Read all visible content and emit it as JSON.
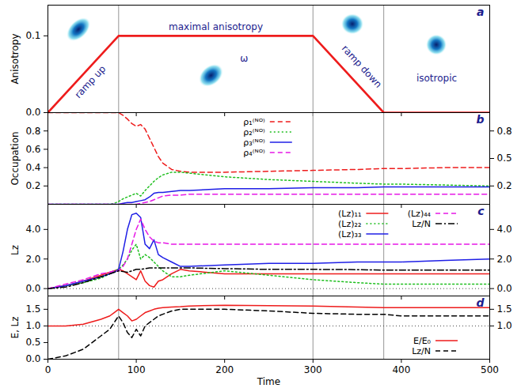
{
  "chart_data": [
    {
      "type": "line",
      "title": "a",
      "ylabel": "Anisotropy",
      "xlim": [
        0,
        500
      ],
      "xticks": [
        0,
        100,
        200,
        300,
        400,
        500
      ],
      "ylim": [
        0,
        0.14
      ],
      "yticks": [
        {
          "value": 0,
          "label": "0.0"
        },
        0.1
      ],
      "tick_labels": "y",
      "x": [
        0,
        80,
        300,
        380,
        500
      ],
      "series": [
        {
          "color": "#ee1c1c",
          "line_style": "solid",
          "values": [
            0,
            0.1,
            0.1,
            0,
            0
          ]
        }
      ],
      "reference_x": [
        80,
        300,
        380
      ],
      "annotations": [
        {
          "text": "ramp up",
          "x": 48,
          "y": 0.04
        },
        {
          "text": "maximal anisotropy",
          "x": 190,
          "y": 0.112
        },
        {
          "text": "ω",
          "x": 222,
          "y": 0.07
        },
        {
          "text": "ramp down",
          "x": 355,
          "y": 0.06
        },
        {
          "text": "isotropic",
          "x": 440,
          "y": 0.045
        }
      ]
    },
    {
      "type": "line",
      "title": "b",
      "ylabel": "Occupation",
      "xlim": [
        0,
        500
      ],
      "xticks": [
        0,
        100,
        200,
        300,
        400,
        500
      ],
      "ylim": [
        0,
        1
      ],
      "yticks": [
        0.2,
        0.4,
        0.6,
        0.8
      ],
      "y2lim": [
        0,
        1
      ],
      "y2ticks": [
        0.2,
        0.5,
        0.8
      ],
      "tick_labels": "y",
      "legend": "top",
      "x": [
        0,
        20,
        40,
        60,
        70,
        75,
        80,
        85,
        90,
        95,
        100,
        105,
        110,
        115,
        120,
        125,
        130,
        140,
        150,
        160,
        200,
        250,
        300,
        350,
        380,
        400,
        450,
        500
      ],
      "series": [
        {
          "name": "ρ₁⁽ᴺᴼ⁾",
          "color": "#ee1c1c",
          "line_style": "dashed",
          "values": [
            1,
            1,
            1,
            1,
            1,
            1,
            1,
            0.97,
            0.93,
            0.88,
            0.85,
            0.87,
            0.82,
            0.72,
            0.62,
            0.52,
            0.45,
            0.38,
            0.36,
            0.35,
            0.35,
            0.36,
            0.37,
            0.38,
            0.39,
            0.39,
            0.4,
            0.4
          ]
        },
        {
          "name": "ρ₂⁽ᴺᴼ⁾",
          "color": "#1fbf1f",
          "line_style": "dotted",
          "values": [
            0,
            0,
            0,
            0,
            0,
            0.01,
            0.03,
            0.06,
            0.08,
            0.1,
            0.12,
            0.09,
            0.15,
            0.2,
            0.25,
            0.29,
            0.32,
            0.35,
            0.35,
            0.34,
            0.3,
            0.27,
            0.25,
            0.23,
            0.22,
            0.22,
            0.21,
            0.2
          ]
        },
        {
          "name": "ρ₃⁽ᴺᴼ⁾",
          "color": "#1f1fe6",
          "line_style": "solid",
          "values": [
            0,
            0,
            0,
            0,
            0,
            0,
            0,
            0.01,
            0.02,
            0.02,
            0.03,
            0.04,
            0.05,
            0.08,
            0.12,
            0.13,
            0.13,
            0.14,
            0.15,
            0.15,
            0.17,
            0.17,
            0.18,
            0.18,
            0.19,
            0.19,
            0.19,
            0.19
          ]
        },
        {
          "name": "ρ₄⁽ᴺᴼ⁾",
          "color": "#e619e6",
          "line_style": "dashed",
          "values": [
            0,
            0,
            0,
            0,
            0,
            0,
            0,
            0,
            0,
            0,
            0,
            0.01,
            0.02,
            0.03,
            0.05,
            0.07,
            0.09,
            0.1,
            0.1,
            0.11,
            0.11,
            0.11,
            0.11,
            0.11,
            0.11,
            0.11,
            0.11,
            0.11
          ]
        }
      ],
      "reference_x": [
        80,
        300,
        380
      ]
    },
    {
      "type": "line",
      "title": "c",
      "ylabel": "Lz",
      "xlim": [
        0,
        500
      ],
      "xticks": [
        0,
        100,
        200,
        300,
        400,
        500
      ],
      "ylim": [
        -0.5,
        5.7
      ],
      "yticks": [
        {
          "value": 0,
          "label": "0.0"
        },
        {
          "value": 2,
          "label": "2.0"
        },
        {
          "value": 4,
          "label": "4.0"
        }
      ],
      "y2lim": [
        -0.5,
        5.7
      ],
      "y2ticks": [
        {
          "value": 0,
          "label": "0.0"
        },
        {
          "value": 2,
          "label": "2.0"
        },
        {
          "value": 4,
          "label": "4.0"
        }
      ],
      "tick_labels": "y",
      "legend": "top-right",
      "x": [
        0,
        20,
        40,
        60,
        70,
        75,
        80,
        85,
        90,
        95,
        100,
        105,
        110,
        115,
        120,
        125,
        130,
        140,
        150,
        160,
        200,
        250,
        300,
        350,
        380,
        400,
        450,
        500
      ],
      "series": [
        {
          "name": "(Lz)₁₁",
          "color": "#ee1c1c",
          "line_style": "solid",
          "values": [
            0,
            0.2,
            0.5,
            0.9,
            1.1,
            1.2,
            1.3,
            1.2,
            1.0,
            0.8,
            0.6,
            1.2,
            0.5,
            0.2,
            0.1,
            0.5,
            0.6,
            1.0,
            1.3,
            1.2,
            1.0,
            1.0,
            1.0,
            1.0,
            1.0,
            1.0,
            1.0,
            1.0
          ]
        },
        {
          "name": "(Lz)₂₂",
          "color": "#1fbf1f",
          "line_style": "dotted",
          "values": [
            0,
            0.2,
            0.4,
            0.7,
            1.0,
            1.2,
            1.3,
            1.6,
            2.0,
            2.6,
            3.0,
            2.0,
            2.3,
            2.1,
            1.8,
            1.5,
            1.2,
            0.8,
            0.8,
            0.9,
            1.2,
            0.9,
            0.6,
            0.4,
            0.3,
            0.3,
            0.3,
            0.3
          ]
        },
        {
          "name": "(Lz)₃₃",
          "color": "#1f1fe6",
          "line_style": "solid",
          "values": [
            0,
            0.2,
            0.5,
            0.8,
            1.0,
            1.1,
            1.3,
            2.5,
            4.0,
            5.0,
            5.1,
            4.8,
            3.0,
            2.7,
            3.3,
            2.3,
            2.1,
            1.8,
            1.5,
            1.5,
            1.6,
            1.7,
            1.7,
            1.8,
            1.8,
            1.8,
            1.9,
            2.0
          ]
        },
        {
          "name": "(Lz)₄₄",
          "color": "#e619e6",
          "line_style": "dashed",
          "values": [
            0,
            0.3,
            0.6,
            1.0,
            1.1,
            1.2,
            1.2,
            1.5,
            2.0,
            3.0,
            4.0,
            4.7,
            4.0,
            3.5,
            3.2,
            3.1,
            3.1,
            3.0,
            3.0,
            3.0,
            3.0,
            3.0,
            3.0,
            3.0,
            3.0,
            3.0,
            3.0,
            3.0
          ]
        },
        {
          "name": "Lz/N",
          "color": "#000000",
          "line_style": "dashdot",
          "values": [
            0,
            0.1,
            0.4,
            0.8,
            1.0,
            1.1,
            1.2,
            1.15,
            1.1,
            1.2,
            1.3,
            1.3,
            1.35,
            1.4,
            1.4,
            1.4,
            1.4,
            1.4,
            1.4,
            1.4,
            1.35,
            1.3,
            1.3,
            1.28,
            1.25,
            1.25,
            1.25,
            1.25
          ]
        }
      ],
      "reference_x": [
        80,
        300,
        380
      ],
      "reference_lines": [
        0
      ]
    },
    {
      "type": "line",
      "title": "d",
      "ylabel": "E, Lz",
      "xlabel": "Time",
      "xlim": [
        0,
        500
      ],
      "xticks": [
        0,
        100,
        200,
        300,
        400,
        500
      ],
      "ylim": [
        0,
        1.9
      ],
      "yticks": [
        {
          "value": 0,
          "label": "0.0"
        },
        0.5,
        {
          "value": 1,
          "label": "1.0"
        },
        1.5
      ],
      "y2lim": [
        0,
        1.9
      ],
      "y2ticks": [
        {
          "value": 1,
          "label": "1.0"
        },
        1.5
      ],
      "legend": "bottom-right",
      "x": [
        0,
        20,
        40,
        60,
        70,
        75,
        80,
        85,
        90,
        95,
        100,
        105,
        110,
        115,
        120,
        125,
        130,
        140,
        150,
        160,
        200,
        250,
        300,
        350,
        380,
        400,
        450,
        500
      ],
      "series": [
        {
          "name": "E/E₀",
          "color": "#ee1c1c",
          "line_style": "solid",
          "values": [
            1.0,
            1.0,
            1.05,
            1.2,
            1.3,
            1.4,
            1.5,
            1.4,
            1.3,
            1.15,
            1.2,
            1.3,
            1.4,
            1.45,
            1.5,
            1.53,
            1.55,
            1.57,
            1.58,
            1.6,
            1.62,
            1.61,
            1.6,
            1.57,
            1.55,
            1.55,
            1.55,
            1.55
          ]
        },
        {
          "name": "Lz/N",
          "color": "#000000",
          "line_style": "dashed",
          "values": [
            0,
            0.1,
            0.3,
            0.7,
            0.9,
            1.1,
            1.3,
            1.1,
            0.8,
            0.65,
            0.9,
            0.7,
            1.0,
            1.1,
            1.2,
            1.3,
            1.35,
            1.45,
            1.5,
            1.5,
            1.5,
            1.45,
            1.38,
            1.35,
            1.35,
            1.3,
            1.3,
            1.3
          ]
        }
      ],
      "reference_x": [
        80,
        300,
        380
      ],
      "reference_lines": [
        1
      ]
    }
  ]
}
